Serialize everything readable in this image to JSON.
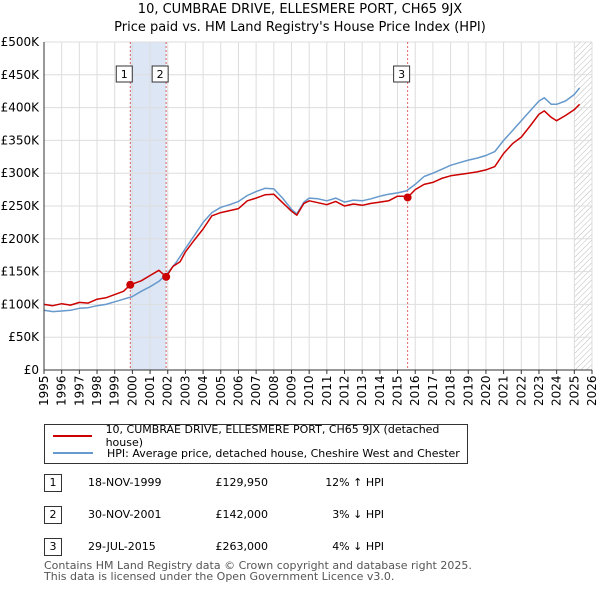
{
  "title_line1": "10, CUMBRAE DRIVE, ELLESMERE PORT, CH65 9JX",
  "title_line2": "Price paid vs. HM Land Registry's House Price Index (HPI)",
  "colors": {
    "property": "#cc0000",
    "hpi": "#6699cc",
    "shade": "#dde6f5",
    "grid": "#dddddd"
  },
  "chart_data": {
    "type": "line",
    "title": "10, CUMBRAE DRIVE, ELLESMERE PORT, CH65 9JX",
    "subtitle": "Price paid vs. HM Land Registry's House Price Index (HPI)",
    "xlabel": "",
    "ylabel": "",
    "xlim": [
      1995,
      2026
    ],
    "ylim": [
      0,
      500000
    ],
    "grid": true,
    "y_ticks": [
      {
        "value": 0,
        "label": "£0"
      },
      {
        "value": 50000,
        "label": "£50K"
      },
      {
        "value": 100000,
        "label": "£100K"
      },
      {
        "value": 150000,
        "label": "£150K"
      },
      {
        "value": 200000,
        "label": "£200K"
      },
      {
        "value": 250000,
        "label": "£250K"
      },
      {
        "value": 300000,
        "label": "£300K"
      },
      {
        "value": 350000,
        "label": "£350K"
      },
      {
        "value": 400000,
        "label": "£400K"
      },
      {
        "value": 450000,
        "label": "£450K"
      },
      {
        "value": 500000,
        "label": "£500K"
      }
    ],
    "x_ticks": [
      "1995",
      "1996",
      "1997",
      "1998",
      "1999",
      "2000",
      "2001",
      "2002",
      "2003",
      "2004",
      "2005",
      "2006",
      "2007",
      "2008",
      "2009",
      "2010",
      "2011",
      "2012",
      "2013",
      "2014",
      "2015",
      "2016",
      "2017",
      "2018",
      "2019",
      "2020",
      "2021",
      "2022",
      "2023",
      "2024",
      "2025",
      "2026"
    ],
    "shaded_ranges": [
      [
        1999.88,
        2001.91
      ]
    ],
    "future_hatch_from": 2025.0,
    "series": [
      {
        "name": "10, CUMBRAE DRIVE, ELLESMERE PORT, CH65 9JX (detached house)",
        "color": "#cc0000",
        "x": [
          1995.0,
          1995.5,
          1996.0,
          1996.5,
          1997.0,
          1997.5,
          1998.0,
          1998.5,
          1999.0,
          1999.5,
          1999.88,
          2000.5,
          2001.0,
          2001.5,
          2001.91,
          2002.3,
          2002.7,
          2003.0,
          2003.5,
          2004.0,
          2004.5,
          2005.0,
          2005.5,
          2006.0,
          2006.5,
          2007.0,
          2007.5,
          2008.0,
          2008.5,
          2009.0,
          2009.3,
          2009.7,
          2010.0,
          2010.5,
          2011.0,
          2011.5,
          2012.0,
          2012.5,
          2013.0,
          2013.5,
          2014.0,
          2014.5,
          2015.0,
          2015.3,
          2015.57,
          2016.0,
          2016.5,
          2017.0,
          2017.5,
          2018.0,
          2018.5,
          2019.0,
          2019.5,
          2020.0,
          2020.5,
          2021.0,
          2021.5,
          2022.0,
          2022.5,
          2023.0,
          2023.3,
          2023.7,
          2024.0,
          2024.5,
          2025.0,
          2025.3
        ],
        "values": [
          100000,
          98000,
          101000,
          99000,
          103000,
          102000,
          108000,
          110000,
          115000,
          120000,
          129950,
          136000,
          144000,
          152000,
          142000,
          158000,
          165000,
          180000,
          198000,
          215000,
          235000,
          240000,
          243000,
          246000,
          258000,
          262000,
          267000,
          268000,
          255000,
          242000,
          236000,
          254000,
          258000,
          255000,
          252000,
          257000,
          250000,
          253000,
          251000,
          254000,
          256000,
          258000,
          265000,
          265000,
          263000,
          275000,
          283000,
          286000,
          292000,
          296000,
          298000,
          300000,
          302000,
          305000,
          310000,
          330000,
          345000,
          355000,
          372000,
          390000,
          395000,
          385000,
          380000,
          388000,
          397000,
          405000
        ]
      },
      {
        "name": "HPI: Average price, detached house, Cheshire West and Chester",
        "color": "#6699cc",
        "x": [
          1995.0,
          1995.5,
          1996.0,
          1996.5,
          1997.0,
          1997.5,
          1998.0,
          1998.5,
          1999.0,
          1999.5,
          2000.0,
          2000.5,
          2001.0,
          2001.5,
          2002.0,
          2002.5,
          2003.0,
          2003.5,
          2004.0,
          2004.5,
          2005.0,
          2005.5,
          2006.0,
          2006.5,
          2007.0,
          2007.5,
          2008.0,
          2008.5,
          2009.0,
          2009.3,
          2009.7,
          2010.0,
          2010.5,
          2011.0,
          2011.5,
          2012.0,
          2012.5,
          2013.0,
          2013.5,
          2014.0,
          2014.5,
          2015.0,
          2015.5,
          2016.0,
          2016.5,
          2017.0,
          2017.5,
          2018.0,
          2018.5,
          2019.0,
          2019.5,
          2020.0,
          2020.5,
          2021.0,
          2021.5,
          2022.0,
          2022.5,
          2023.0,
          2023.3,
          2023.7,
          2024.0,
          2024.5,
          2025.0,
          2025.3
        ],
        "values": [
          91000,
          89000,
          90000,
          91000,
          94000,
          95000,
          98000,
          100000,
          104000,
          108000,
          112000,
          120000,
          127000,
          135000,
          148000,
          165000,
          185000,
          205000,
          225000,
          240000,
          248000,
          252000,
          257000,
          266000,
          272000,
          277000,
          276000,
          262000,
          245000,
          238000,
          256000,
          262000,
          261000,
          258000,
          262000,
          256000,
          259000,
          258000,
          261000,
          265000,
          268000,
          270000,
          273000,
          283000,
          295000,
          300000,
          306000,
          312000,
          316000,
          320000,
          323000,
          327000,
          333000,
          350000,
          365000,
          380000,
          395000,
          410000,
          415000,
          405000,
          405000,
          410000,
          420000,
          430000
        ]
      }
    ],
    "markers": [
      {
        "id": "1",
        "x": 1999.88,
        "value": 129950
      },
      {
        "id": "2",
        "x": 2001.91,
        "value": 142000
      },
      {
        "id": "3",
        "x": 2015.57,
        "value": 263000
      }
    ]
  },
  "legend": {
    "property_label": "10, CUMBRAE DRIVE, ELLESMERE PORT, CH65 9JX (detached house)",
    "hpi_label": "HPI: Average price, detached house, Cheshire West and Chester"
  },
  "sales": [
    {
      "num": "1",
      "date": "18-NOV-1999",
      "price": "£129,950",
      "hpi": "12% ↑ HPI"
    },
    {
      "num": "2",
      "date": "30-NOV-2001",
      "price": "£142,000",
      "hpi": "3% ↓ HPI"
    },
    {
      "num": "3",
      "date": "29-JUL-2015",
      "price": "£263,000",
      "hpi": "4% ↓ HPI"
    }
  ],
  "footer_line1": "Contains HM Land Registry data © Crown copyright and database right 2025.",
  "footer_line2": "This data is licensed under the Open Government Licence v3.0."
}
